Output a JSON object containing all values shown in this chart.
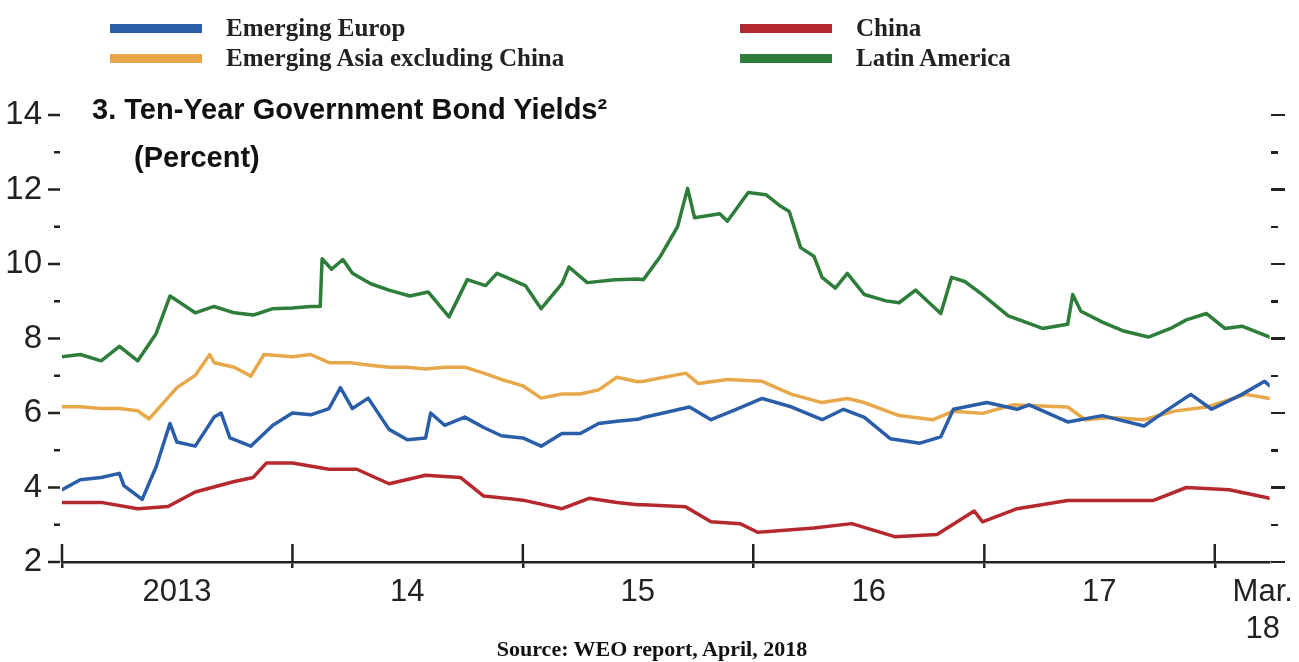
{
  "chart_data": {
    "type": "line",
    "title": "3. Ten-Year Government Bond Yields²",
    "subtitle": "(Percent)",
    "annotations": [
      "Source: WEO report, April, 2018"
    ],
    "xlim": [
      "2013-01-01",
      "2018-03-29"
    ],
    "xticks": [
      {
        "value": "2013-01-01",
        "label": null
      },
      {
        "value": "2013-07-02",
        "label": "2013"
      },
      {
        "value": "2014-01-01",
        "label": null
      },
      {
        "value": "2014-07-02",
        "label": "14"
      },
      {
        "value": "2015-01-01",
        "label": null
      },
      {
        "value": "2015-07-02",
        "label": "15"
      },
      {
        "value": "2016-01-01",
        "label": null
      },
      {
        "value": "2016-07-02",
        "label": "16"
      },
      {
        "value": "2017-01-01",
        "label": null
      },
      {
        "value": "2017-07-02",
        "label": "17"
      },
      {
        "value": "2018-01-01",
        "label": null
      },
      {
        "value": "2018-03-18",
        "label": "Mar.\n18"
      }
    ],
    "ylim": [
      2,
      14
    ],
    "yticks": [
      2,
      {
        "value": 3,
        "label": null
      },
      4,
      {
        "value": 5,
        "label": null
      },
      6,
      {
        "value": 7,
        "label": null
      },
      8,
      {
        "value": 9,
        "label": null
      },
      10,
      {
        "value": 11,
        "label": null
      },
      12,
      {
        "value": 13,
        "label": null
      },
      14
    ],
    "grid": false,
    "legend": "top",
    "marker": "none",
    "line_style": "solid",
    "series": [
      {
        "name": "Emerging Europ",
        "color": "#2a5ea8",
        "x": [
          "2013-01-01",
          "2013-01-30",
          "2013-03-04",
          "2013-04-02",
          "2013-04-09",
          "2013-05-08",
          "2013-05-30",
          "2013-06-21",
          "2013-07-02",
          "2013-07-31",
          "2013-08-30",
          "2013-09-10",
          "2013-09-24",
          "2013-10-27",
          "2013-12-01",
          "2014-01-01",
          "2014-01-30",
          "2014-02-28",
          "2014-03-18",
          "2014-04-06",
          "2014-05-01",
          "2014-06-03",
          "2014-07-02",
          "2014-07-31",
          "2014-08-08",
          "2014-08-30",
          "2014-10-01",
          "2014-10-31",
          "2014-11-28",
          "2015-01-01",
          "2015-01-30",
          "2015-03-04",
          "2015-04-02",
          "2015-05-01",
          "2015-05-30",
          "2015-07-02",
          "2015-07-11",
          "2015-09-22",
          "2015-10-26",
          "2015-12-05",
          "2016-01-15",
          "2016-03-02",
          "2016-04-19",
          "2016-05-23",
          "2016-06-25",
          "2016-08-05",
          "2016-09-21",
          "2016-10-24",
          "2016-11-13",
          "2017-01-05",
          "2017-02-22",
          "2017-03-13",
          "2017-05-13",
          "2017-07-07",
          "2017-09-11",
          "2017-10-15",
          "2017-11-24",
          "2017-12-27",
          "2018-02-13",
          "2018-03-21",
          "2018-03-29"
        ],
        "values": [
          3.94,
          4.21,
          4.27,
          4.38,
          4.05,
          3.68,
          4.55,
          5.72,
          5.22,
          5.11,
          5.89,
          6.0,
          5.33,
          5.11,
          5.67,
          6.0,
          5.95,
          6.12,
          6.68,
          6.12,
          6.4,
          5.56,
          5.28,
          5.33,
          6.0,
          5.67,
          5.89,
          5.61,
          5.39,
          5.33,
          5.11,
          5.45,
          5.45,
          5.72,
          5.78,
          5.83,
          5.88,
          6.16,
          5.82,
          6.1,
          6.39,
          6.16,
          5.82,
          6.1,
          5.88,
          5.31,
          5.19,
          5.36,
          6.1,
          6.28,
          6.1,
          6.22,
          5.76,
          5.93,
          5.65,
          6.05,
          6.5,
          6.1,
          6.5,
          6.85,
          6.73
        ]
      },
      {
        "name": "Emerging Asia excluding China",
        "color": "#e8a84a",
        "x": [
          "2013-01-01",
          "2013-01-30",
          "2013-03-04",
          "2013-04-02",
          "2013-05-01",
          "2013-05-19",
          "2013-07-02",
          "2013-07-31",
          "2013-08-23",
          "2013-08-30",
          "2013-10-01",
          "2013-10-27",
          "2013-11-17",
          "2014-01-01",
          "2014-01-30",
          "2014-02-28",
          "2014-04-02",
          "2014-05-01",
          "2014-06-03",
          "2014-07-02",
          "2014-07-31",
          "2014-08-30",
          "2014-10-01",
          "2014-10-31",
          "2014-11-28",
          "2015-01-01",
          "2015-01-30",
          "2015-03-04",
          "2015-04-02",
          "2015-05-01",
          "2015-05-30",
          "2015-07-02",
          "2015-07-11",
          "2015-09-16",
          "2015-10-06",
          "2015-11-21",
          "2016-01-15",
          "2016-03-02",
          "2016-04-19",
          "2016-05-29",
          "2016-06-25",
          "2016-08-19",
          "2016-10-12",
          "2016-11-13",
          "2016-12-29",
          "2017-02-16",
          "2017-05-13",
          "2017-06-10",
          "2017-07-21",
          "2017-09-11",
          "2017-10-29",
          "2017-12-19",
          "2018-02-19",
          "2018-03-29"
        ],
        "values": [
          6.17,
          6.17,
          6.12,
          6.12,
          6.06,
          5.84,
          6.68,
          7.01,
          7.57,
          7.35,
          7.23,
          6.99,
          7.57,
          7.51,
          7.57,
          7.35,
          7.35,
          7.29,
          7.23,
          7.23,
          7.18,
          7.23,
          7.23,
          7.07,
          6.9,
          6.73,
          6.4,
          6.51,
          6.51,
          6.62,
          6.96,
          6.84,
          6.85,
          7.07,
          6.79,
          6.9,
          6.85,
          6.5,
          6.28,
          6.39,
          6.28,
          5.93,
          5.82,
          6.05,
          5.99,
          6.22,
          6.16,
          5.82,
          5.88,
          5.82,
          6.05,
          6.16,
          6.5,
          6.39
        ]
      },
      {
        "name": "China",
        "color": "#b5282e",
        "x": [
          "2013-01-01",
          "2013-03-04",
          "2013-05-01",
          "2013-06-18",
          "2013-07-31",
          "2013-10-01",
          "2013-10-31",
          "2013-11-21",
          "2014-01-01",
          "2014-02-28",
          "2014-04-13",
          "2014-06-03",
          "2014-07-31",
          "2014-09-24",
          "2014-10-31",
          "2015-01-01",
          "2015-03-04",
          "2015-04-16",
          "2015-05-30",
          "2015-07-02",
          "2015-07-11",
          "2015-09-16",
          "2015-10-26",
          "2015-12-11",
          "2016-01-08",
          "2016-04-06",
          "2016-06-05",
          "2016-08-12",
          "2016-10-18",
          "2016-12-16",
          "2016-12-29",
          "2017-02-22",
          "2017-05-13",
          "2017-07-21",
          "2017-09-25",
          "2017-11-17",
          "2018-01-24",
          "2018-03-29"
        ],
        "values": [
          3.6,
          3.6,
          3.43,
          3.49,
          3.88,
          4.16,
          4.27,
          4.66,
          4.66,
          4.49,
          4.49,
          4.1,
          4.33,
          4.27,
          3.77,
          3.66,
          3.43,
          3.71,
          3.6,
          3.54,
          3.54,
          3.48,
          3.08,
          3.03,
          2.8,
          2.91,
          3.03,
          2.68,
          2.74,
          3.37,
          3.08,
          3.43,
          3.65,
          3.65,
          3.65,
          4.0,
          3.94,
          3.71
        ]
      },
      {
        "name": "Latin America",
        "color": "#2e7d3a",
        "x": [
          "2013-01-01",
          "2013-01-30",
          "2013-03-04",
          "2013-04-02",
          "2013-05-01",
          "2013-05-30",
          "2013-06-21",
          "2013-07-02",
          "2013-07-31",
          "2013-08-30",
          "2013-10-01",
          "2013-10-31",
          "2013-12-01",
          "2014-01-01",
          "2014-01-30",
          "2014-02-14",
          "2014-02-17",
          "2014-03-04",
          "2014-03-22",
          "2014-04-06",
          "2014-05-05",
          "2014-06-03",
          "2014-07-06",
          "2014-08-04",
          "2014-09-06",
          "2014-10-05",
          "2014-11-03",
          "2014-11-21",
          "2015-01-05",
          "2015-01-30",
          "2015-03-04",
          "2015-03-15",
          "2015-04-13",
          "2015-05-27",
          "2015-07-02",
          "2015-07-11",
          "2015-08-07",
          "2015-09-03",
          "2015-09-19",
          "2015-09-30",
          "2015-11-09",
          "2015-11-21",
          "2015-12-24",
          "2016-01-21",
          "2016-02-11",
          "2016-02-27",
          "2016-03-16",
          "2016-04-06",
          "2016-04-19",
          "2016-05-10",
          "2016-05-29",
          "2016-06-25",
          "2016-07-29",
          "2016-08-19",
          "2016-09-14",
          "2016-10-24",
          "2016-11-10",
          "2016-12-01",
          "2016-12-29",
          "2017-02-08",
          "2017-04-03",
          "2017-05-13",
          "2017-05-21",
          "2017-06-03",
          "2017-07-07",
          "2017-08-08",
          "2017-09-18",
          "2017-10-23",
          "2017-11-17",
          "2017-12-19",
          "2018-01-17",
          "2018-02-13",
          "2018-03-29"
        ],
        "values": [
          7.51,
          7.57,
          7.4,
          7.79,
          7.4,
          8.13,
          9.14,
          9.02,
          8.69,
          8.86,
          8.69,
          8.63,
          8.8,
          8.82,
          8.86,
          8.86,
          10.14,
          9.86,
          10.12,
          9.75,
          9.47,
          9.3,
          9.14,
          9.25,
          8.58,
          9.58,
          9.42,
          9.75,
          9.42,
          8.8,
          9.47,
          9.92,
          9.5,
          9.58,
          9.6,
          9.58,
          10.21,
          11.0,
          12.03,
          11.24,
          11.35,
          11.15,
          11.92,
          11.86,
          11.58,
          11.41,
          10.44,
          10.21,
          9.64,
          9.35,
          9.75,
          9.18,
          9.01,
          8.96,
          9.3,
          8.67,
          9.64,
          9.53,
          9.18,
          8.61,
          8.27,
          8.38,
          9.18,
          8.73,
          8.44,
          8.21,
          8.04,
          8.27,
          8.5,
          8.67,
          8.27,
          8.33,
          8.04
        ]
      }
    ]
  }
}
